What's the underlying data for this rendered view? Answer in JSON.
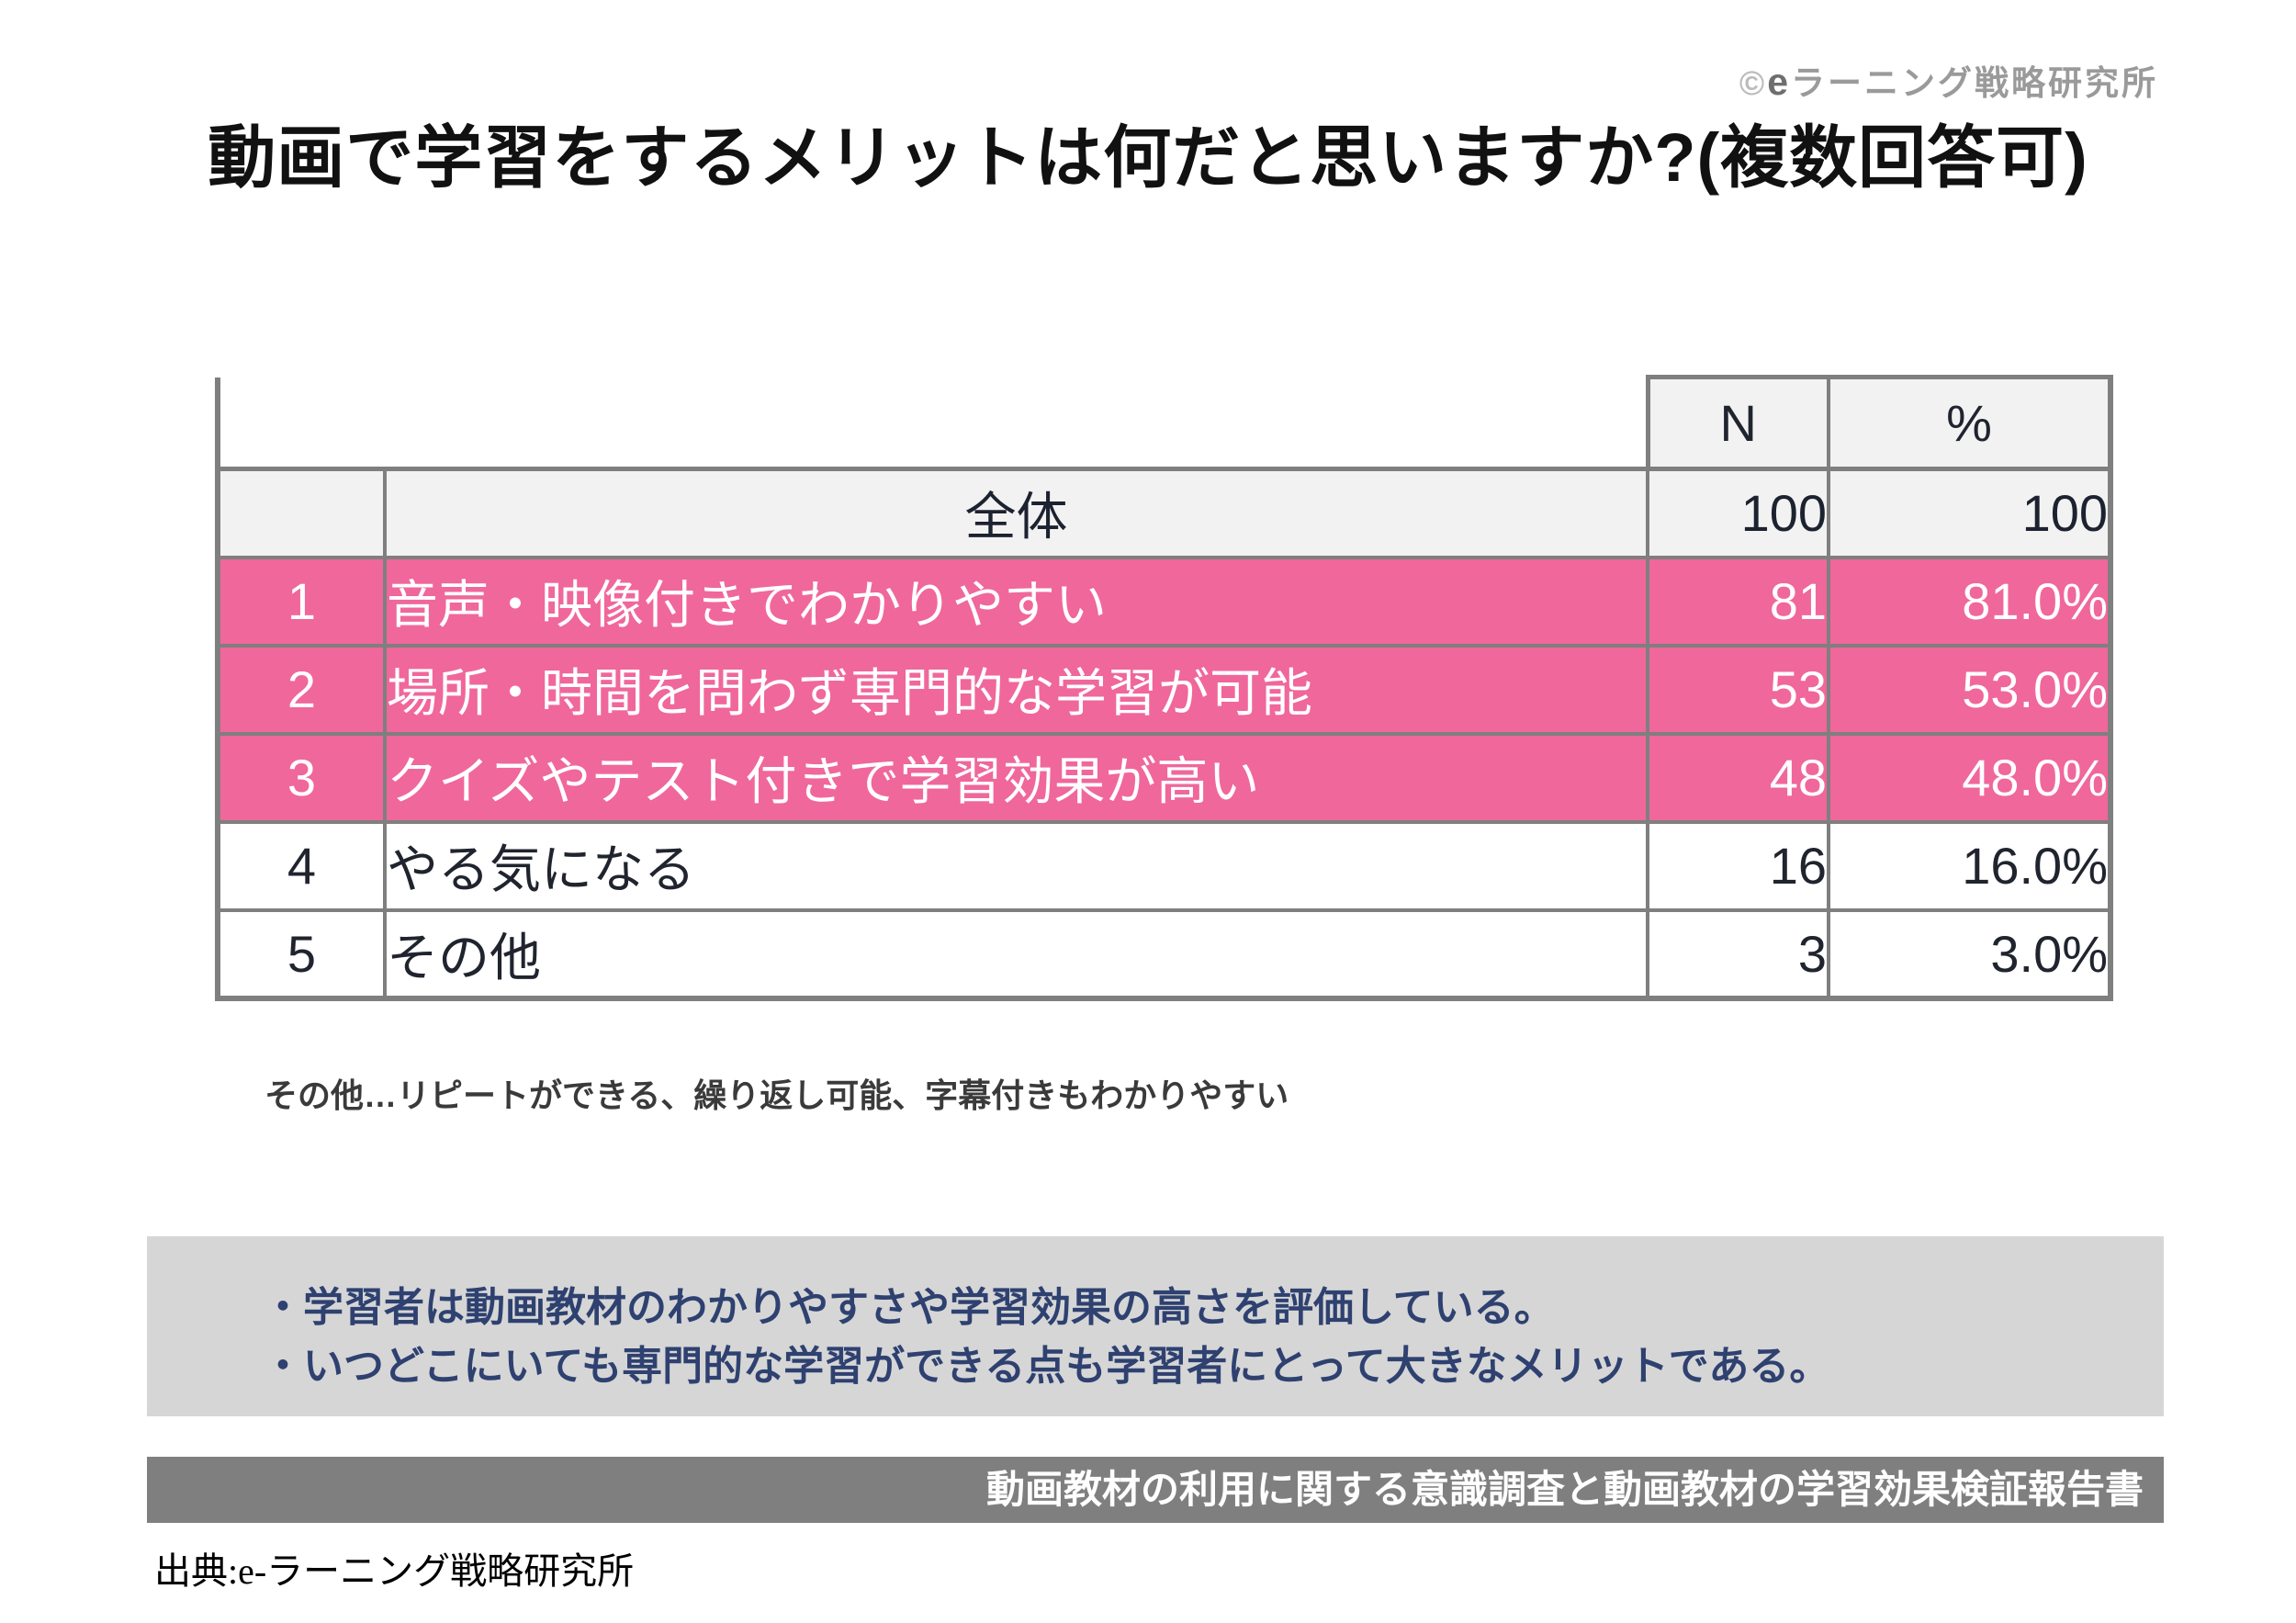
{
  "header": {
    "copyright_symbol": "©",
    "logo_e": "e",
    "logo_text": "ラーニング戦略研究所"
  },
  "title": "動画で学習をするメリットは何だと思いますか?(複数回答可)",
  "chart_data": {
    "type": "table",
    "title": "動画で学習をするメリットは何だと思いますか?(複数回答可)",
    "columns": [
      "N",
      "%"
    ],
    "overall_row": {
      "label": "全体",
      "n": "100",
      "percent": "100"
    },
    "rows": [
      {
        "rank": "1",
        "label": "音声・映像付きでわかりやすい",
        "n": "81",
        "percent": "81.0%",
        "highlighted": true
      },
      {
        "rank": "2",
        "label": "場所・時間を問わず専門的な学習が可能",
        "n": "53",
        "percent": "53.0%",
        "highlighted": true
      },
      {
        "rank": "3",
        "label": "クイズやテスト付きで学習効果が高い",
        "n": "48",
        "percent": "48.0%",
        "highlighted": true
      },
      {
        "rank": "4",
        "label": "やる気になる",
        "n": "16",
        "percent": "16.0%",
        "highlighted": false
      },
      {
        "rank": "5",
        "label": "その他",
        "n": "3",
        "percent": "3.0%",
        "highlighted": false
      }
    ],
    "note": "その他…リピートができる、繰り返し可能、字幕付きもわかりやすい",
    "colors": {
      "highlight_pink": "#f0679b",
      "header_gray": "#f2f2f2",
      "border_gray": "#7f7f7f",
      "summary_box_gray": "#d6d6d6",
      "source_bar_gray": "#7f7f7f",
      "summary_text_navy": "#2e4170"
    }
  },
  "summary": {
    "bullets": [
      "・学習者は動画教材のわかりやすさや学習効果の高さを評価している。",
      "・いつどこにいても専門的な学習ができる点も学習者にとって大きなメリットである。"
    ]
  },
  "source_bar": {
    "text": "動画教材の利用に関する意識調査と動画教材の学習効果検証報告書"
  },
  "source_line": {
    "text": "出典:e-ラーニング戦略研究所"
  }
}
